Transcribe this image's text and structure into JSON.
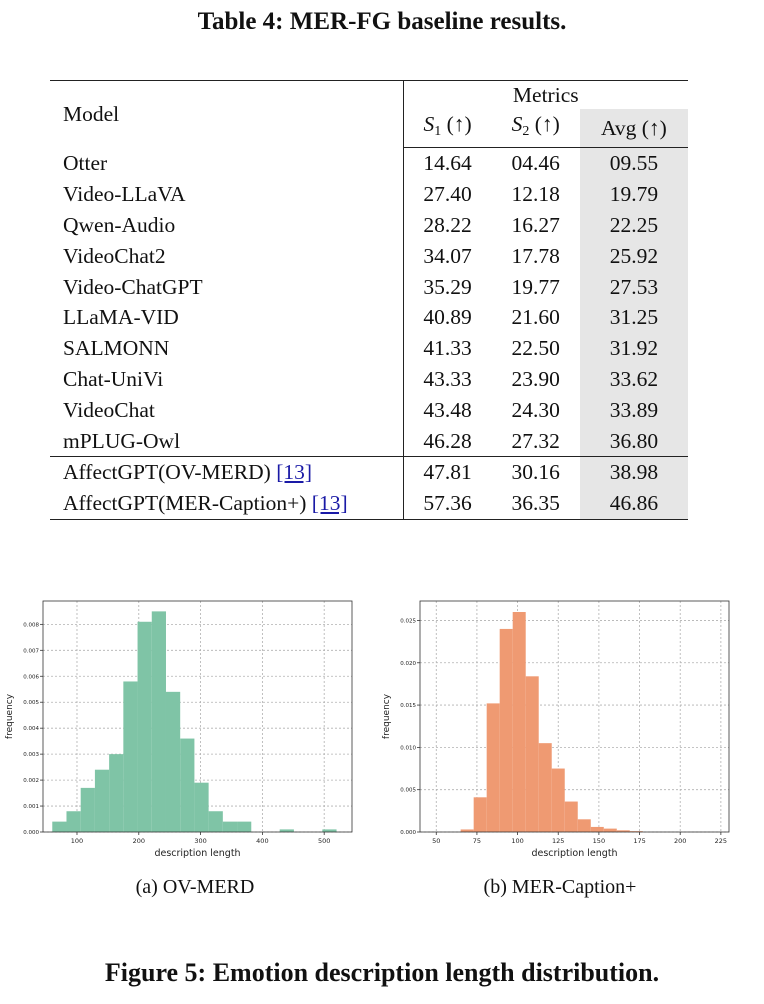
{
  "table": {
    "caption": "Table 4: MER-FG baseline results.",
    "header": {
      "model": "Model",
      "metrics": "Metrics",
      "s1_letter": "S",
      "s1_sub": "1",
      "s2_letter": "S",
      "s2_sub": "2",
      "arrow": "(↑)",
      "avg": "Avg (↑)"
    },
    "rows": [
      {
        "model": "Otter",
        "s1": "14.64",
        "s2": "04.46",
        "avg": "09.55"
      },
      {
        "model": "Video-LLaVA",
        "s1": "27.40",
        "s2": "12.18",
        "avg": "19.79"
      },
      {
        "model": "Qwen-Audio",
        "s1": "28.22",
        "s2": "16.27",
        "avg": "22.25"
      },
      {
        "model": "VideoChat2",
        "s1": "34.07",
        "s2": "17.78",
        "avg": "25.92"
      },
      {
        "model": "Video-ChatGPT",
        "s1": "35.29",
        "s2": "19.77",
        "avg": "27.53"
      },
      {
        "model": "LLaMA-VID",
        "s1": "40.89",
        "s2": "21.60",
        "avg": "31.25"
      },
      {
        "model": "SALMONN",
        "s1": "41.33",
        "s2": "22.50",
        "avg": "31.92"
      },
      {
        "model": "Chat-UniVi",
        "s1": "43.33",
        "s2": "23.90",
        "avg": "33.62"
      },
      {
        "model": "VideoChat",
        "s1": "43.48",
        "s2": "24.30",
        "avg": "33.89"
      },
      {
        "model": "mPLUG-Owl",
        "s1": "46.28",
        "s2": "27.32",
        "avg": "36.80"
      }
    ],
    "affect_rows": [
      {
        "model": "AffectGPT(OV-MERD)",
        "ref": "[13]",
        "s1": "47.81",
        "s2": "30.16",
        "avg": "38.98"
      },
      {
        "model": "AffectGPT(MER-Caption+)",
        "ref": "[13]",
        "s1": "57.36",
        "s2": "36.35",
        "avg": "46.86"
      }
    ]
  },
  "figure": {
    "caption": "Figure 5: Emotion description length distribution.",
    "subcaption_a": "(a)  OV-MERD",
    "subcaption_b": "(b)  MER-Caption+"
  },
  "chart_data": [
    {
      "type": "bar",
      "subtype": "histogram",
      "color": "#7fc4a6",
      "xlabel": "description length",
      "ylabel": "frequency",
      "xlim": [
        45,
        545
      ],
      "ylim": [
        0,
        0.0089
      ],
      "xticks": [
        100,
        200,
        300,
        400,
        500
      ],
      "yticks": [
        0.0,
        0.001,
        0.002,
        0.003,
        0.004,
        0.005,
        0.006,
        0.007,
        0.008
      ],
      "ytick_labels": [
        "0.000",
        "0.001",
        "0.002",
        "0.003",
        "0.004",
        "0.005",
        "0.006",
        "0.007",
        "0.008"
      ],
      "grid": true,
      "bin_edges": [
        60,
        83,
        106,
        129,
        152,
        175,
        198,
        221,
        244,
        267,
        290,
        313,
        336,
        359,
        382,
        405,
        428,
        451,
        474,
        497,
        520
      ],
      "values": [
        0.0004,
        0.0008,
        0.0017,
        0.0024,
        0.003,
        0.0058,
        0.0081,
        0.0085,
        0.0054,
        0.0036,
        0.0019,
        0.0008,
        0.0004,
        0.0004,
        0.0,
        0.0,
        0.0001,
        0.0,
        0.0,
        0.0001
      ]
    },
    {
      "type": "bar",
      "subtype": "histogram",
      "color": "#ef9a72",
      "xlabel": "description length",
      "ylabel": "frequency",
      "xlim": [
        40,
        230
      ],
      "ylim": [
        0,
        0.0273
      ],
      "xticks": [
        50,
        75,
        100,
        125,
        150,
        175,
        200,
        225
      ],
      "yticks": [
        0.0,
        0.005,
        0.01,
        0.015,
        0.02,
        0.025
      ],
      "ytick_labels": [
        "0.000",
        "0.005",
        "0.010",
        "0.015",
        "0.020",
        "0.025"
      ],
      "grid": true,
      "bin_edges": [
        49,
        57,
        65,
        73,
        81,
        89,
        97,
        105,
        113,
        121,
        129,
        137,
        145,
        153,
        161,
        169,
        177,
        185,
        193,
        201,
        209
      ],
      "values": [
        0.0,
        0.0,
        0.0003,
        0.0041,
        0.0152,
        0.024,
        0.026,
        0.0184,
        0.0105,
        0.0075,
        0.0036,
        0.0015,
        0.0006,
        0.0004,
        0.0002,
        0.0001,
        0.0,
        0.0,
        0.0,
        0.0
      ]
    }
  ]
}
